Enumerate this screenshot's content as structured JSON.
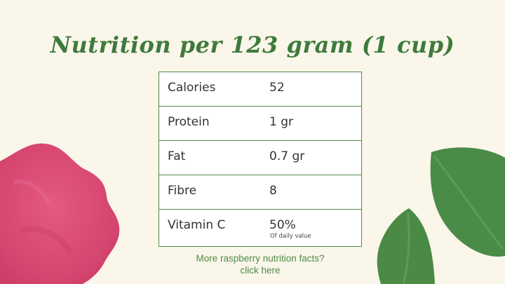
{
  "title": "Nutrition per 123 gram (1 cup)",
  "nutrition": {
    "rows": [
      {
        "name": "Calories",
        "value": "52"
      },
      {
        "name": "Protein",
        "value": "1 gr"
      },
      {
        "name": "Fat",
        "value": "0.7 gr"
      },
      {
        "name": "Fibre",
        "value": "8"
      },
      {
        "name": "Vitamin C",
        "value": "50%",
        "note": "Of daily value"
      }
    ]
  },
  "link": {
    "line1": "More raspberry nutrition facts?",
    "line2": "click here"
  },
  "colors": {
    "background": "#faf6ea",
    "title": "#3f7a3c",
    "table_border": "#4e8a4a",
    "raspberry": "#d94a72",
    "leaf": "#4b8b48"
  },
  "decorations": [
    "raspberry-illustration",
    "leaf-illustration"
  ]
}
